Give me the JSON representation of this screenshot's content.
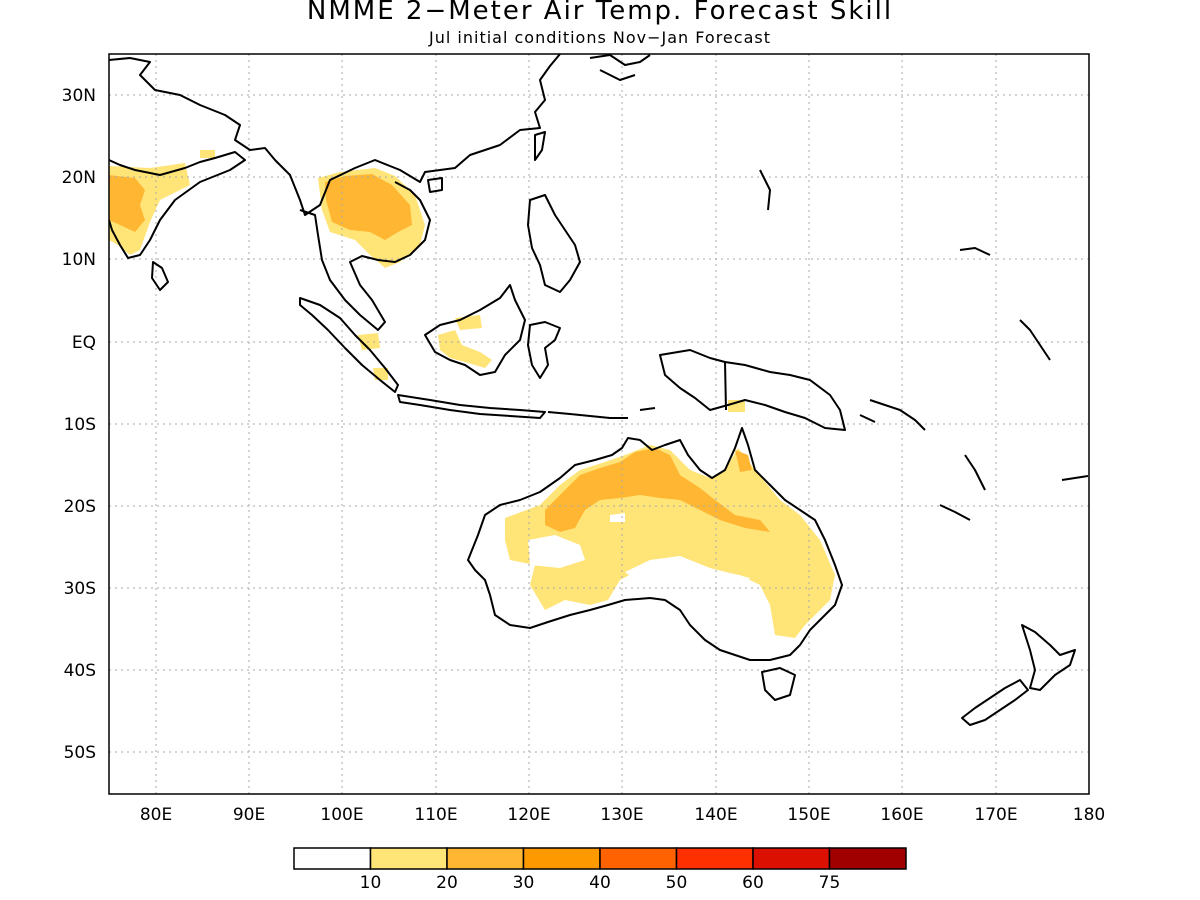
{
  "title": "NMME 2−Meter Air Temp. Forecast Skill",
  "subtitle": "Jul initial conditions  Nov−Jan Forecast",
  "lat_labels": [
    "30N",
    "20N",
    "10N",
    "EQ",
    "10S",
    "20S",
    "30S",
    "40S",
    "50S"
  ],
  "lon_labels": [
    "80E",
    "90E",
    "100E",
    "110E",
    "120E",
    "130E",
    "140E",
    "150E",
    "160E",
    "170E",
    "180"
  ],
  "map_extent": {
    "lon_range": [
      75,
      180
    ],
    "lat_range": [
      -55,
      35
    ]
  },
  "colorbar": {
    "colors": [
      "#ffffff",
      "#ffe478",
      "#ffb733",
      "#ff9900",
      "#ff6200",
      "#ff3000",
      "#db1000",
      "#a00000"
    ],
    "labels": [
      "10",
      "20",
      "30",
      "40",
      "50",
      "60",
      "75"
    ]
  },
  "colors": {
    "land_outline": "#000000",
    "grid": "#a8a8a8",
    "level1": "#ffe478",
    "level2": "#ffb733"
  }
}
